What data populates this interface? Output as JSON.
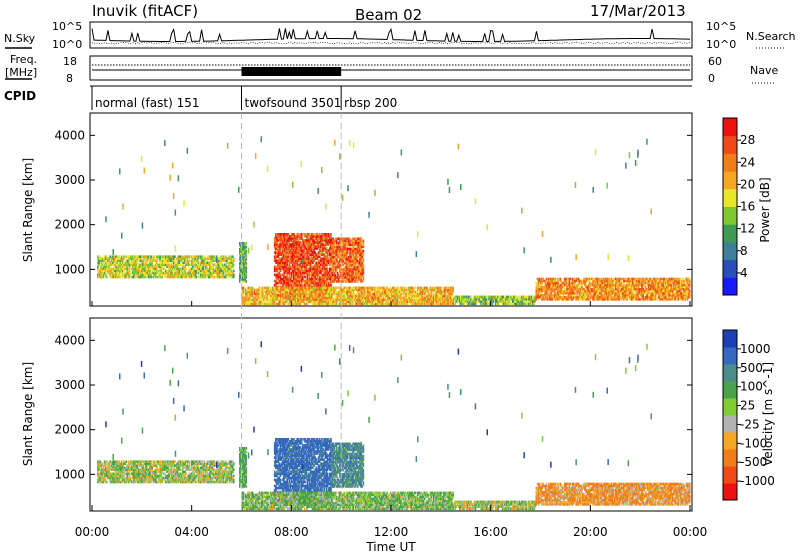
{
  "header": {
    "radar": "Inuvik (fitACF)",
    "beam": "Beam 02",
    "date": "17/Mar/2013"
  },
  "noise_panel": {
    "left_label": "N.Sky",
    "right_label": "N.Search",
    "ticks_left": [
      "10^5",
      "10^0"
    ],
    "ticks_right": [
      "10^5",
      "10^0"
    ]
  },
  "freq_panel": {
    "left_label_top": "Freq.",
    "left_label_unit": "[MHz]",
    "right_label": "Nave",
    "ticks_left": [
      "18",
      "8"
    ],
    "ticks_right": [
      "60",
      "0"
    ]
  },
  "cpid": {
    "label": "CPID",
    "segments": [
      {
        "name": "normal (fast) 151",
        "start_hour": 0,
        "end_hour": 6
      },
      {
        "name": "twofsound 3501",
        "start_hour": 6,
        "end_hour": 10
      },
      {
        "name": "rbsp 200",
        "start_hour": 10,
        "end_hour": 24
      }
    ]
  },
  "time_axis": {
    "label": "Time UT",
    "ticks": [
      "00:00",
      "04:00",
      "08:00",
      "12:00",
      "16:00",
      "20:00",
      "00:00"
    ]
  },
  "range_axis": {
    "label": "Slant Range [km]",
    "ticks": [
      "1000",
      "2000",
      "3000",
      "4000"
    ]
  },
  "power_scale": {
    "label": "Power [dB]",
    "ticks": [
      "4",
      "8",
      "12",
      "16",
      "20",
      "24",
      "28"
    ],
    "colors": [
      "#1a1aff",
      "#2b4fb8",
      "#3d7f9a",
      "#3f9a56",
      "#7ec832",
      "#e8e62a",
      "#f5a623",
      "#f07c1a",
      "#ee4b17",
      "#ee1111"
    ]
  },
  "velocity_scale": {
    "label": "Velocity [m s^-1]",
    "ticks": [
      "1000",
      "500",
      "100",
      "25",
      "-25",
      "-100",
      "-500",
      "-1000"
    ],
    "colors": [
      "#1c3fb5",
      "#3569c0",
      "#4d8c8c",
      "#4aa34a",
      "#7fcc33",
      "#b3b3b3",
      "#f5a623",
      "#f07c1a",
      "#ee4b17",
      "#ee1111"
    ]
  },
  "chart_data": {
    "type": "heatmap",
    "x_range_hours": [
      0,
      24
    ],
    "y_range_km": [
      180,
      4500
    ],
    "mode_change_hours": [
      6,
      10
    ],
    "panels": [
      "Power",
      "Velocity"
    ],
    "echo_regions": [
      {
        "t0": 0.2,
        "t1": 5.7,
        "r0": 800,
        "r1": 1300,
        "power_db": 16,
        "velocity": 50
      },
      {
        "t0": 5.9,
        "t1": 6.2,
        "r0": 700,
        "r1": 1600,
        "power_db": 12,
        "velocity": 200
      },
      {
        "t0": 7.3,
        "t1": 9.6,
        "r0": 300,
        "r1": 1800,
        "power_db": 26,
        "velocity": 600
      },
      {
        "t0": 9.6,
        "t1": 10.9,
        "r0": 700,
        "r1": 1700,
        "power_db": 24,
        "velocity": 400
      },
      {
        "t0": 6.0,
        "t1": 14.5,
        "r0": 200,
        "r1": 600,
        "power_db": 20,
        "velocity": 100
      },
      {
        "t0": 14.5,
        "t1": 17.8,
        "r0": 200,
        "r1": 400,
        "power_db": 14,
        "velocity": 50
      },
      {
        "t0": 17.8,
        "t1": 24.0,
        "r0": 300,
        "r1": 800,
        "power_db": 22,
        "velocity": -120
      }
    ]
  }
}
